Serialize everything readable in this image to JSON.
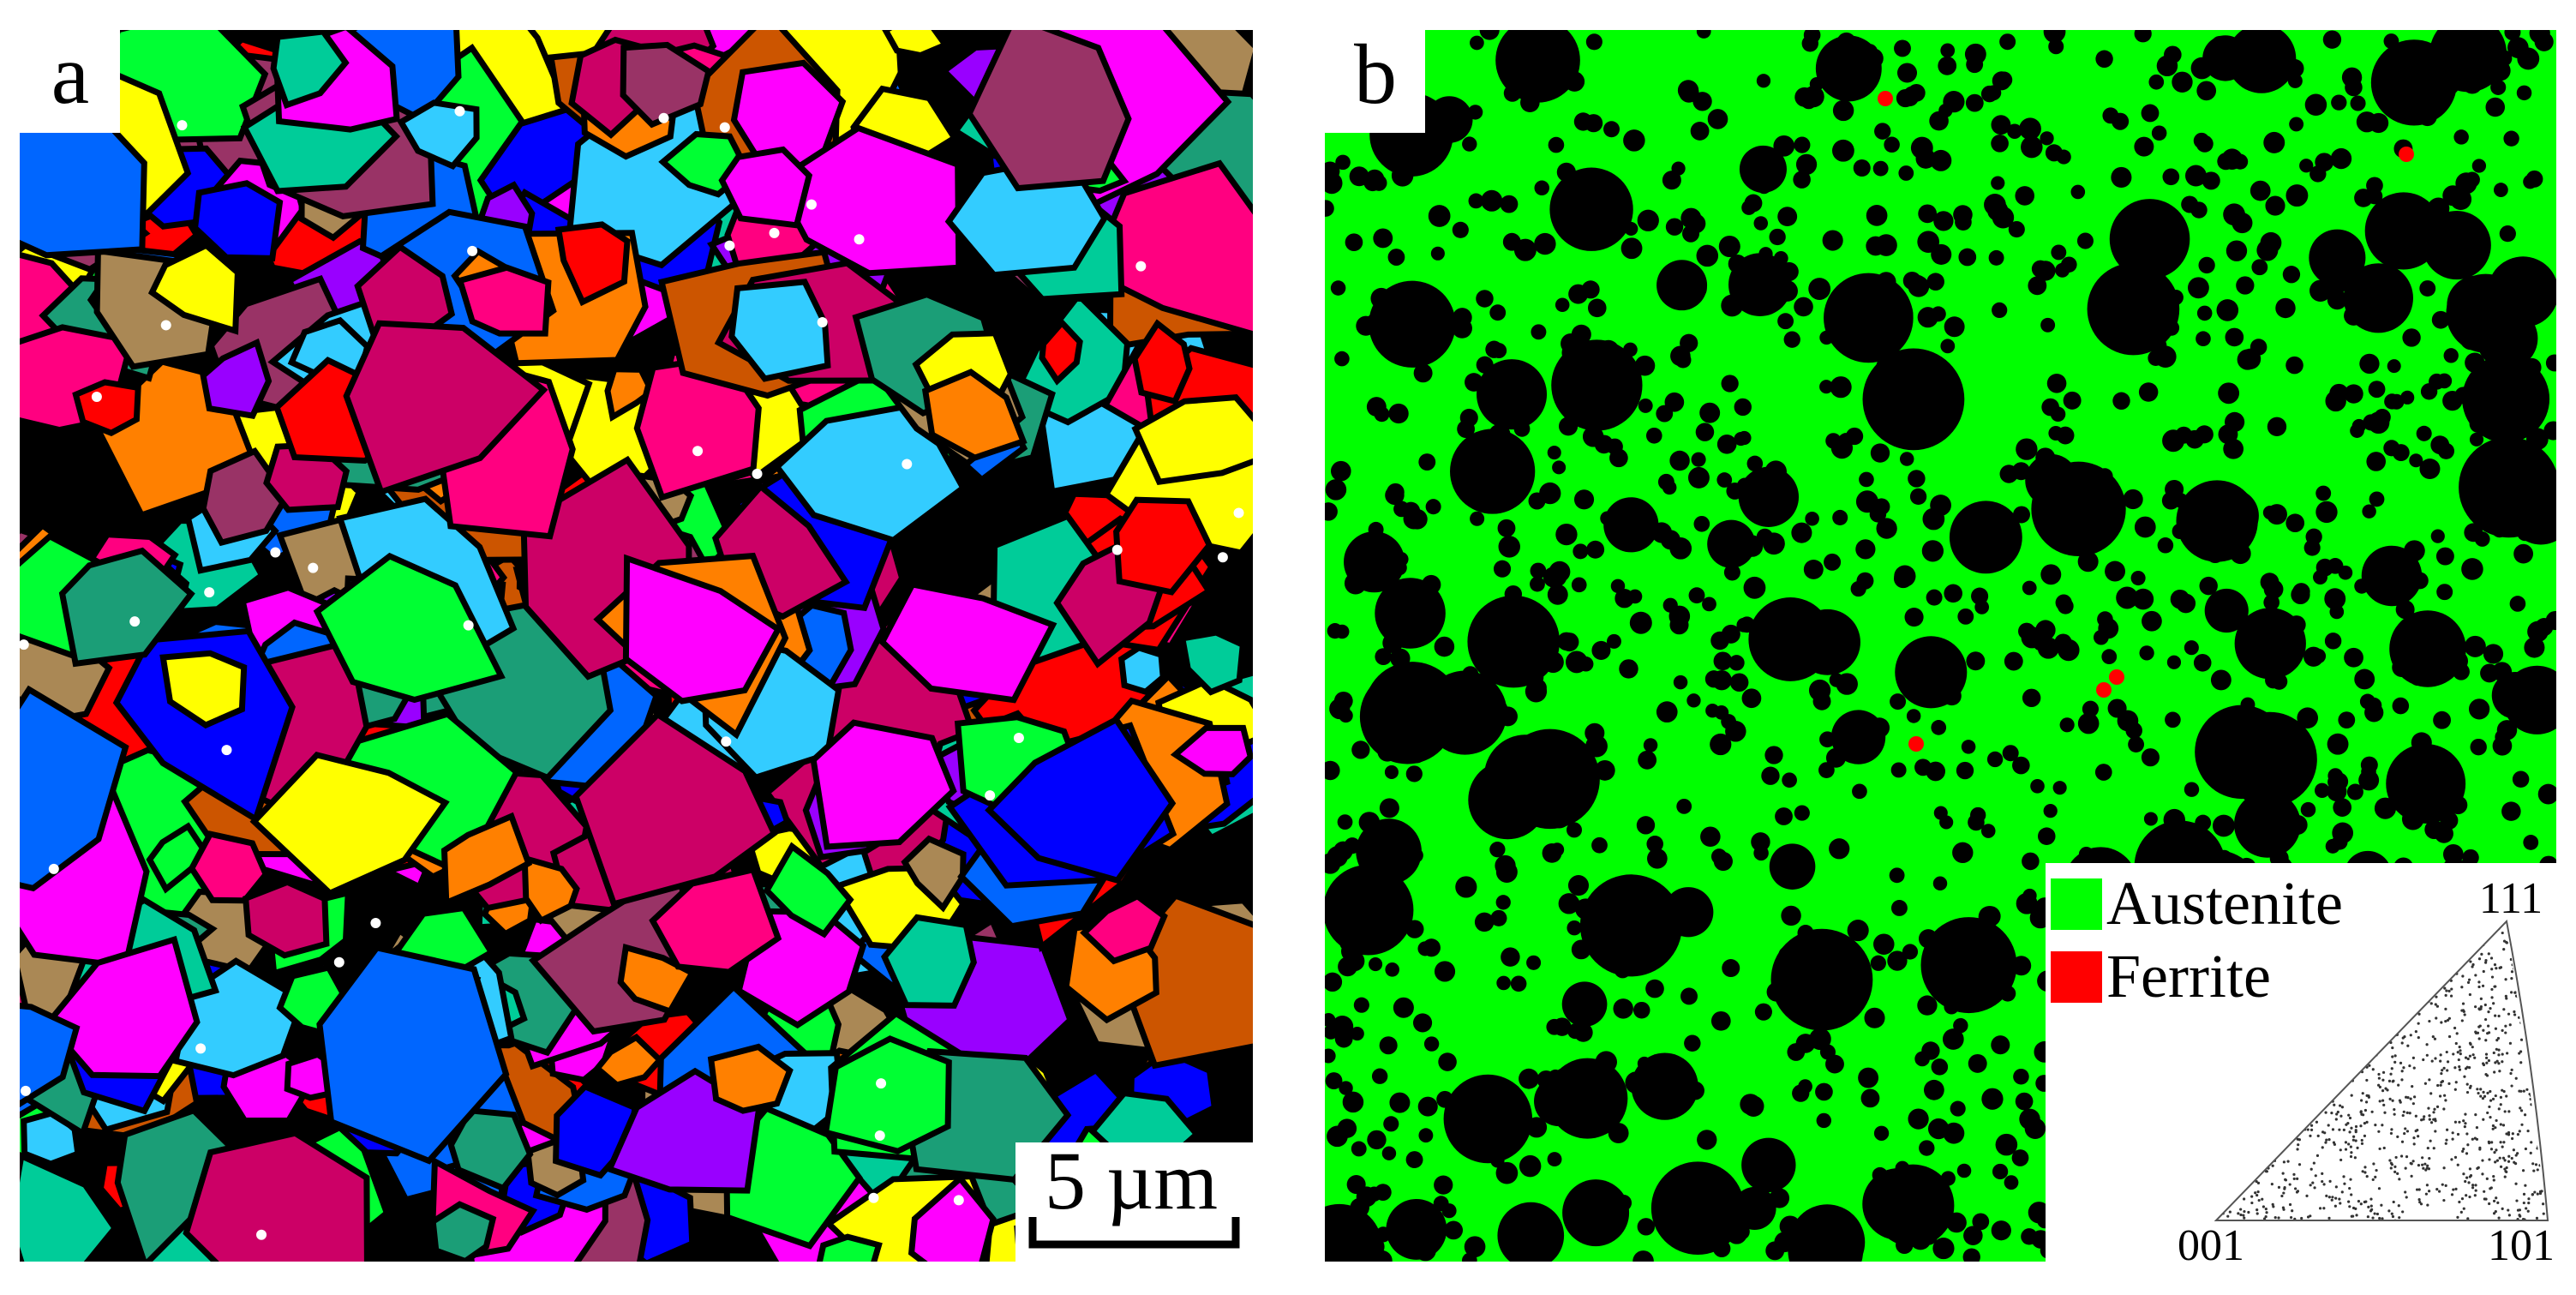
{
  "panels": [
    {
      "label": "a",
      "scale_bar": "5 µm"
    },
    {
      "label": "b",
      "legend": [
        {
          "label": "Austenite",
          "color": "#00ff00"
        },
        {
          "label": "Ferrite",
          "color": "#ff0000"
        }
      ],
      "inset": {
        "corners": [
          "001",
          "101",
          "111"
        ]
      }
    }
  ]
}
